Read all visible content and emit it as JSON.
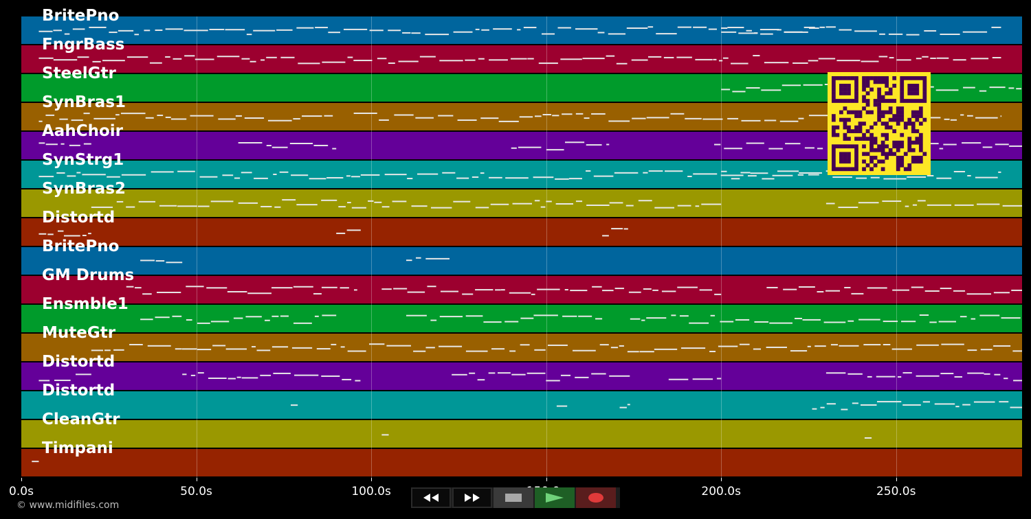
{
  "colors": {
    "track_palette": [
      "#00659d",
      "#9c002f",
      "#009b2b",
      "#996000",
      "#640099",
      "#009797",
      "#9a9800",
      "#962300"
    ],
    "note": "#e8e8e8",
    "qr_fg": "#440154",
    "qr_bg": "#fde725"
  },
  "tracks": [
    {
      "name": "BritePno"
    },
    {
      "name": "FngrBass"
    },
    {
      "name": "SteelGtr"
    },
    {
      "name": "SynBras1"
    },
    {
      "name": "AahChoir"
    },
    {
      "name": "SynStrg1"
    },
    {
      "name": "SynBras2"
    },
    {
      "name": "Distortd"
    },
    {
      "name": "BritePno"
    },
    {
      "name": "GM Drums"
    },
    {
      "name": "Ensmble1"
    },
    {
      "name": "MuteGtr"
    },
    {
      "name": "Distortd"
    },
    {
      "name": "Distortd"
    },
    {
      "name": "CleanGtr"
    },
    {
      "name": "Timpani"
    }
  ],
  "time_axis": {
    "max_seconds": 286,
    "ticks": [
      "0.0s",
      "50.0s",
      "100.0s",
      "150.0s",
      "200.0s",
      "250.0s"
    ],
    "tick_values": [
      0,
      50,
      100,
      150,
      200,
      250
    ]
  },
  "copyright": "© www.midifiles.com",
  "transport": [
    {
      "name": "rewind-button",
      "icon": "rewind-icon"
    },
    {
      "name": "fast-forward-button",
      "icon": "fast-forward-icon"
    },
    {
      "name": "stop-button",
      "icon": "stop-icon"
    },
    {
      "name": "play-button",
      "icon": "play-icon"
    },
    {
      "name": "record-button",
      "icon": "record-icon"
    }
  ]
}
